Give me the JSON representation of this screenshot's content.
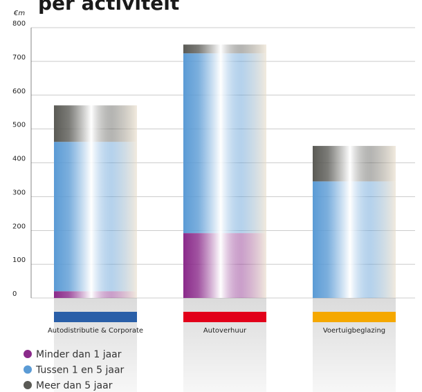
{
  "chart_data": {
    "type": "bar",
    "stacked": true,
    "title": "per activiteit",
    "y_label": "€m",
    "categories": [
      "Autodistributie & Corporate",
      "Autoverhuur",
      "Voertuigbeglazing"
    ],
    "category_colors": [
      "#2a5fa8",
      "#e2001a",
      "#f5a800"
    ],
    "series": [
      {
        "name": "Minder dan 1 jaar",
        "color": "#8a2a8a",
        "values": [
          20,
          192,
          0
        ]
      },
      {
        "name": "Tussen 1 en 5 jaar",
        "color": "#5b9bd5",
        "values": [
          442,
          532,
          345
        ]
      },
      {
        "name": "Meer dan 5 jaar",
        "color": "#5a5a55",
        "values": [
          108,
          26,
          105
        ]
      }
    ],
    "ylim": [
      0,
      800
    ],
    "yticks": [
      0,
      100,
      200,
      300,
      400,
      500,
      600,
      700,
      800
    ],
    "grid": true
  }
}
